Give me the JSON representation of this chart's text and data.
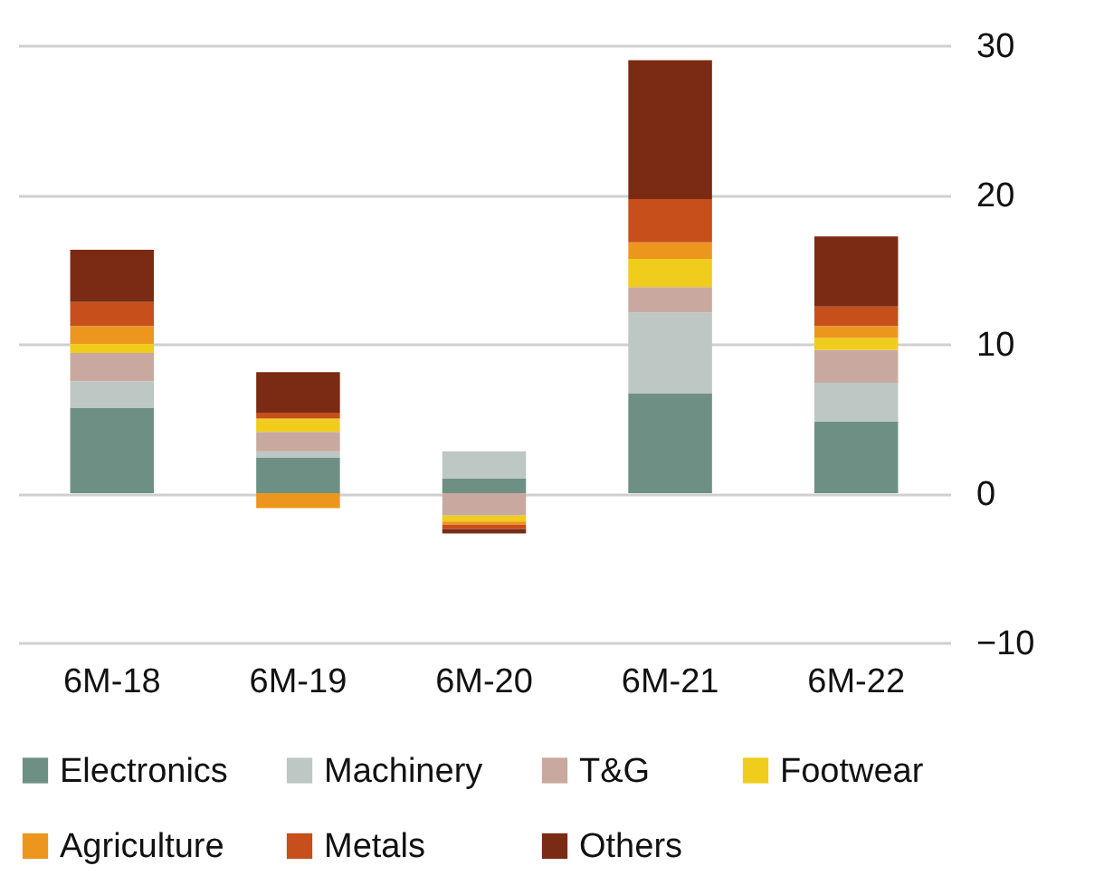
{
  "chart_data": {
    "type": "bar",
    "stacked": true,
    "categories": [
      "6M-18",
      "6M-19",
      "6M-20",
      "6M-21",
      "6M-22"
    ],
    "series": [
      {
        "name": "Electronics",
        "color": "#6e9084",
        "values": [
          5.7,
          2.4,
          1.0,
          6.7,
          4.8
        ]
      },
      {
        "name": "Machinery",
        "color": "#bdc7c3",
        "values": [
          1.8,
          0.4,
          1.8,
          5.4,
          2.6
        ]
      },
      {
        "name": "T&G",
        "color": "#c9a99f",
        "values": [
          1.9,
          1.3,
          -1.5,
          1.7,
          2.2
        ]
      },
      {
        "name": "Footwear",
        "color": "#f0cd1c",
        "values": [
          0.6,
          0.9,
          -0.4,
          1.9,
          0.8
        ]
      },
      {
        "name": "Agriculture",
        "color": "#ec961e",
        "values": [
          1.2,
          -1.0,
          -0.2,
          1.1,
          0.8
        ]
      },
      {
        "name": "Metals",
        "color": "#c64f1b",
        "values": [
          1.6,
          0.4,
          -0.3,
          2.9,
          1.3
        ]
      },
      {
        "name": "Others",
        "color": "#7b2b13",
        "values": [
          3.5,
          2.7,
          -0.3,
          9.3,
          4.7
        ]
      }
    ],
    "ylim": [
      -10,
      30
    ],
    "yticks": [
      -10,
      0,
      10,
      20,
      30
    ],
    "grid": "y",
    "legend": "bottom"
  }
}
